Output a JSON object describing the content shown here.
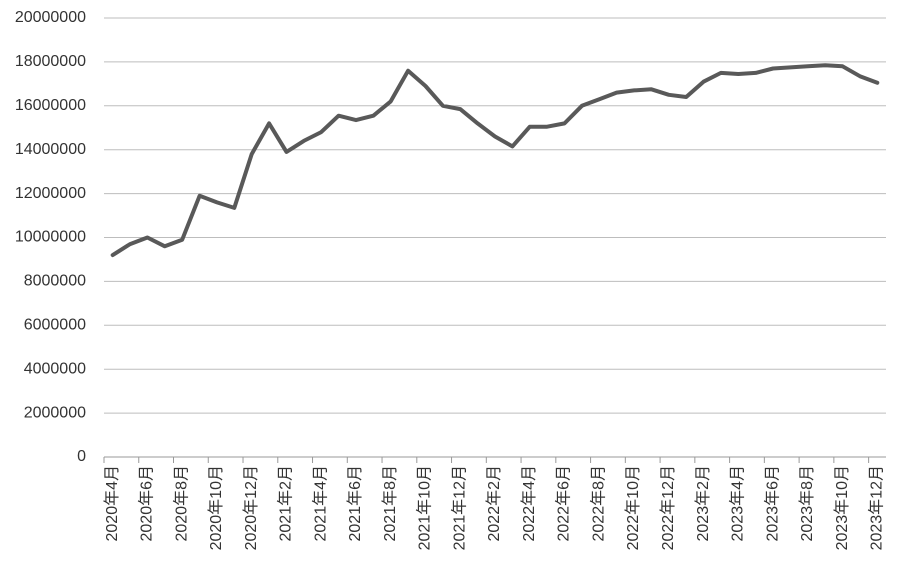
{
  "chart_data": {
    "type": "line",
    "categories": [
      "2020年4月",
      null,
      "2020年6月",
      null,
      "2020年8月",
      null,
      "2020年10月",
      null,
      "2020年12月",
      null,
      "2021年2月",
      null,
      "2021年4月",
      null,
      "2021年6月",
      null,
      "2021年8月",
      null,
      "2021年10月",
      null,
      "2021年12月",
      null,
      "2022年2月",
      null,
      "2022年4月",
      null,
      "2022年6月",
      null,
      "2022年8月",
      null,
      "2022年10月",
      null,
      "2022年12月",
      null,
      "2023年2月",
      null,
      "2023年4月",
      null,
      "2023年6月",
      null,
      "2023年8月",
      null,
      "2023年10月",
      null,
      "2023年12月"
    ],
    "values": [
      9200000,
      9700000,
      10000000,
      9600000,
      9900000,
      11900000,
      11600000,
      11350000,
      13800000,
      15200000,
      13900000,
      14400000,
      14800000,
      15550000,
      15350000,
      15550000,
      16200000,
      17600000,
      16900000,
      16000000,
      15850000,
      15200000,
      14600000,
      14150000,
      15050000,
      15050000,
      15200000,
      16000000,
      16300000,
      16600000,
      16700000,
      16750000,
      16500000,
      16400000,
      17100000,
      17500000,
      17450000,
      17500000,
      17700000,
      17750000,
      17800000,
      17850000,
      17800000,
      17350000,
      17050000
    ],
    "color": "#595959",
    "ylim": [
      0,
      20000000
    ],
    "yticks": [
      0,
      2000000,
      4000000,
      6000000,
      8000000,
      10000000,
      12000000,
      14000000,
      16000000,
      18000000,
      20000000
    ],
    "grid": true
  }
}
